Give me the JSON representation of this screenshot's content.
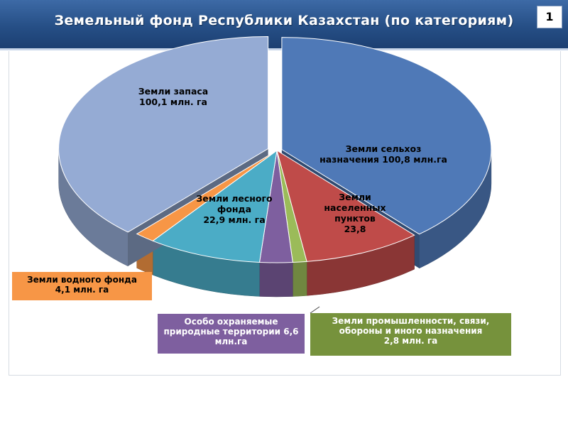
{
  "header": {
    "title": "Земельный фонд Республики Казахстан (по категориям)",
    "page_number": "1"
  },
  "colors": {
    "agri": "#4f79b7",
    "settlements": "#bf4b49",
    "industry": "#9bbb59",
    "protected": "#7e5f9f",
    "forest": "#4bacc6",
    "water": "#f79646",
    "reserve": "#95abd4"
  },
  "chart_data": {
    "type": "pie",
    "title": "Земельный фонд Республики Казахстан (по категориям)",
    "style": "3d-exploded",
    "slices": [
      {
        "key": "agri",
        "value": 100.8,
        "color": "#4f79b7",
        "label_lines": [
          "Земли сельхоз",
          "назначения 100,8 млн.га"
        ]
      },
      {
        "key": "settlements",
        "value": 23.8,
        "color": "#bf4b49",
        "label_lines": [
          "Земли",
          "населенных",
          "пунктов",
          "23,8"
        ]
      },
      {
        "key": "industry",
        "value": 2.8,
        "color": "#9bbb59",
        "label_lines": [
          "Земли  промышленности, связи,",
          "обороны и иного назначения",
          "2,8 млн. га"
        ]
      },
      {
        "key": "protected",
        "value": 6.6,
        "color": "#7e5f9f",
        "label_lines": [
          "Особо охраняемые",
          "природные территории 6,6",
          "млн.га"
        ]
      },
      {
        "key": "forest",
        "value": 22.9,
        "color": "#4bacc6",
        "label_lines": [
          "Земли лесного",
          "фонда",
          "22,9 млн. га"
        ]
      },
      {
        "key": "water",
        "value": 4.1,
        "color": "#f79646",
        "label_lines": [
          "Земли водного фонда",
          "4,1 млн. га"
        ]
      },
      {
        "key": "reserve",
        "value": 100.1,
        "color": "#95abd4",
        "label_lines": [
          "Земли запаса",
          "100,1 млн. га"
        ]
      }
    ]
  }
}
